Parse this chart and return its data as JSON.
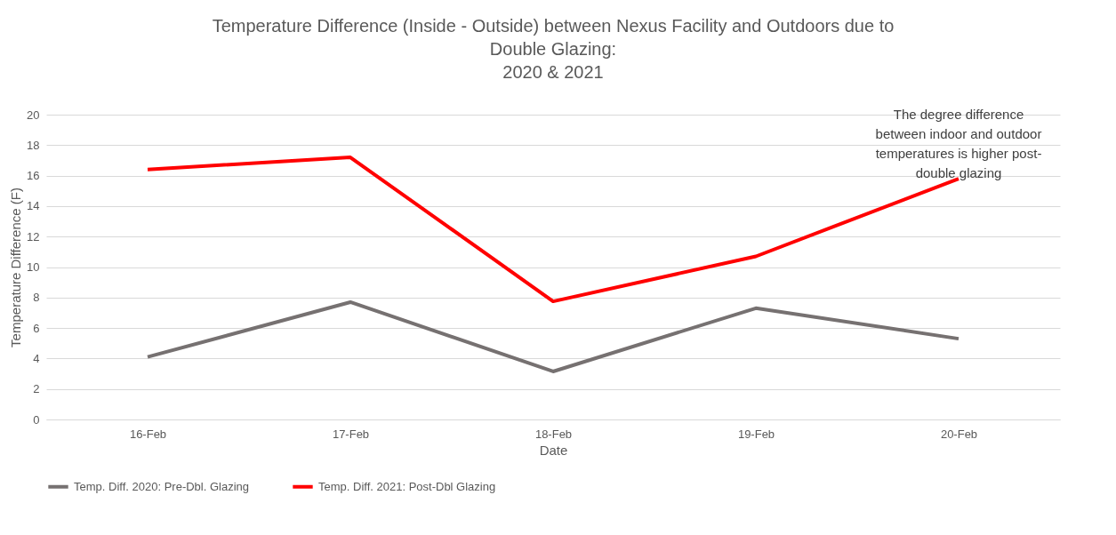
{
  "chart_data": {
    "type": "line",
    "title": "Temperature Difference (Inside - Outside) between Nexus Facility and Outdoors due to\nDouble Glazing:\n2020 & 2021",
    "xlabel": "Date",
    "ylabel": "Temperature Difference (F)",
    "categories": [
      "16-Feb",
      "17-Feb",
      "18-Feb",
      "19-Feb",
      "20-Feb"
    ],
    "series": [
      {
        "name": "Temp. Diff. 2020: Pre-Dbl. Glazing",
        "color": "#767171",
        "values": [
          4.1,
          7.7,
          3.15,
          7.3,
          5.3
        ]
      },
      {
        "name": "Temp. Diff. 2021: Post-Dbl Glazing",
        "color": "#ff0000",
        "values": [
          16.4,
          17.2,
          7.75,
          10.7,
          15.8
        ]
      }
    ],
    "ylim": [
      0,
      20
    ],
    "yticks": [
      0,
      2,
      4,
      6,
      8,
      10,
      12,
      14,
      16,
      18,
      20
    ],
    "grid": "y",
    "legend": "bottom",
    "marker": "none",
    "annotations": [
      {
        "text": "The degree difference\nbetween indoor and outdoor\ntemperatures is higher post-\ndouble glazing",
        "x": "20-Feb",
        "y": 15.8
      }
    ]
  }
}
